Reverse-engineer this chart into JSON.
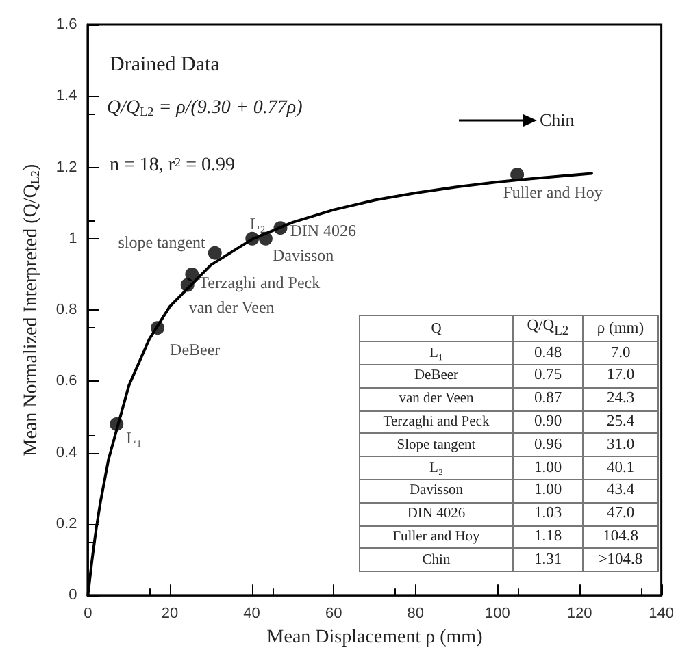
{
  "chart_data": {
    "type": "scatter",
    "title": "Drained Data",
    "subtitle": "Q/Q$_{L2}$ = ρ/(9.30 + 0.77ρ)",
    "xlabel": "Mean Displacement ρ (mm)",
    "ylabel": "Mean Normalized Interpreted (Q/Q$_{L2}$)",
    "xlim": [
      0,
      140
    ],
    "xticks": [
      0,
      20,
      40,
      60,
      80,
      100,
      120,
      140
    ],
    "ylim": [
      0,
      1.6
    ],
    "yticks": [
      0,
      0.2,
      0.4,
      0.6,
      0.8,
      1.0,
      1.2,
      1.4,
      1.6
    ],
    "grid": false,
    "series": [
      {
        "color": "#000000",
        "marker": "circle",
        "x": [
          7.0,
          17.0,
          24.3,
          25.4,
          31.0,
          40.1,
          43.4,
          47.0,
          104.8
        ],
        "values": [
          0.48,
          0.75,
          0.87,
          0.9,
          0.96,
          1.0,
          1.0,
          1.03,
          1.18
        ]
      },
      {
        "type": "line",
        "color": "#000000",
        "marker": "none",
        "line_style": "solid",
        "x": [
          0,
          1,
          2,
          3,
          5,
          10,
          15,
          20,
          30,
          40,
          50,
          60,
          70,
          80,
          90,
          100,
          110,
          123
        ],
        "values": [
          0,
          0.099,
          0.185,
          0.258,
          0.38,
          0.588,
          0.719,
          0.81,
          0.926,
          0.998,
          1.046,
          1.081,
          1.108,
          1.128,
          1.145,
          1.159,
          1.17,
          1.183
        ]
      }
    ],
    "annotations": [
      {
        "text": "L₁",
        "x": 7.0,
        "y": 0.48
      },
      {
        "text": "DeBeer",
        "x": 17.0,
        "y": 0.75
      },
      {
        "text": "van der Veen",
        "x": 24.3,
        "y": 0.87
      },
      {
        "text": "Terzaghi and Peck",
        "x": 25.4,
        "y": 0.9
      },
      {
        "text": "slope tangent",
        "x": 31.0,
        "y": 0.96
      },
      {
        "text": "L₂",
        "x": 40.1,
        "y": 1.0
      },
      {
        "text": "Davisson",
        "x": 43.4,
        "y": 1.0
      },
      {
        "text": "DIN 4026",
        "x": 47.0,
        "y": 1.03
      },
      {
        "text": "Fuller and Hoy",
        "x": 104.8,
        "y": 1.18
      },
      "n = 18, r$^{2}$ = 0.99",
      "Chin",
      "Q",
      "Q/Q$_{L2}$",
      "ρ (mm)",
      "L₁",
      "0.48",
      "7.0",
      "DeBeer",
      "0.75",
      "17.0",
      "van der Veen",
      "0.87",
      "24.3",
      "Terzaghi and Peck",
      "0.90",
      "25.4",
      "Slope tangent",
      "0.96",
      "31.0",
      "L₂",
      "1.00",
      "40.1",
      "Davisson",
      "1.00",
      "43.4",
      "DIN 4026",
      "1.03",
      "47.0",
      "Fuller and Hoy",
      "1.18",
      "104.8",
      "Chin",
      "1.31",
      ">104.8"
    ]
  }
}
